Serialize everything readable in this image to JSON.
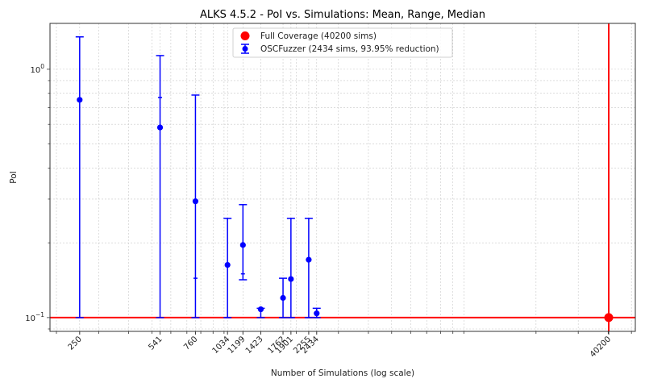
{
  "chart_data": {
    "type": "scatter",
    "title": "ALKS 4.5.2 - PoI vs. Simulations: Mean, Range, Median",
    "xlabel": "Number of Simulations (log scale)",
    "ylabel": "PoI",
    "xscale": "log",
    "yscale": "log",
    "xlim": [
      188,
      51900
    ],
    "ylim": [
      0.088,
      1.53
    ],
    "grid": true,
    "legend_position": "upper center",
    "x_ticks": [
      250,
      541,
      760,
      1034,
      1199,
      1423,
      1762,
      1901,
      2255,
      2434,
      40200
    ],
    "x_tick_labels": [
      "250",
      "541",
      "760",
      "1034",
      "1199",
      "1423",
      "1762",
      "1901",
      "2255",
      "2434",
      "40200"
    ],
    "y_ticks": [
      0.1,
      1.0
    ],
    "y_tick_labels": [
      "10^-1",
      "10^0"
    ],
    "series": [
      {
        "name": "Full Coverage (40200 sims)",
        "color": "#ff0000",
        "marker": "circle",
        "points": [
          {
            "x": 40200,
            "mean": 0.1
          }
        ],
        "reference_lines": {
          "vertical_x": 40200,
          "horizontal_y": 0.1
        }
      },
      {
        "name": "OSCFuzzer (2434 sims, 93.95% reduction)",
        "color": "#0000ff",
        "marker": "circle-errorbar",
        "points": [
          {
            "x": 250,
            "mean": 0.753,
            "min": 0.1,
            "max": 1.35,
            "median": 0.76
          },
          {
            "x": 541,
            "mean": 0.583,
            "min": 0.1,
            "max": 1.135,
            "median": 0.77
          },
          {
            "x": 760,
            "mean": 0.294,
            "min": 0.1,
            "max": 0.787,
            "median": 0.144
          },
          {
            "x": 1034,
            "mean": 0.163,
            "min": 0.1,
            "max": 0.251,
            "median": 0.1
          },
          {
            "x": 1199,
            "mean": 0.196,
            "min": 0.142,
            "max": 0.285,
            "median": 0.15
          },
          {
            "x": 1423,
            "mean": 0.108,
            "min": 0.1,
            "max": 0.109,
            "median": 0.109
          },
          {
            "x": 1762,
            "mean": 0.12,
            "min": 0.1,
            "max": 0.144,
            "median": 0.1
          },
          {
            "x": 1901,
            "mean": 0.143,
            "min": 0.1,
            "max": 0.251,
            "median": 0.1
          },
          {
            "x": 2255,
            "mean": 0.171,
            "min": 0.1,
            "max": 0.251,
            "median": 0.1
          },
          {
            "x": 2434,
            "mean": 0.104,
            "min": 0.1,
            "max": 0.109,
            "median": 0.1
          }
        ]
      }
    ]
  },
  "legend": {
    "items": [
      {
        "label": "Full Coverage (40200 sims)",
        "color": "#ff0000",
        "icon": "red-circle-marker"
      },
      {
        "label": "OSCFuzzer (2434 sims, 93.95% reduction)",
        "color": "#0000ff",
        "icon": "blue-errorbar-marker"
      }
    ]
  }
}
